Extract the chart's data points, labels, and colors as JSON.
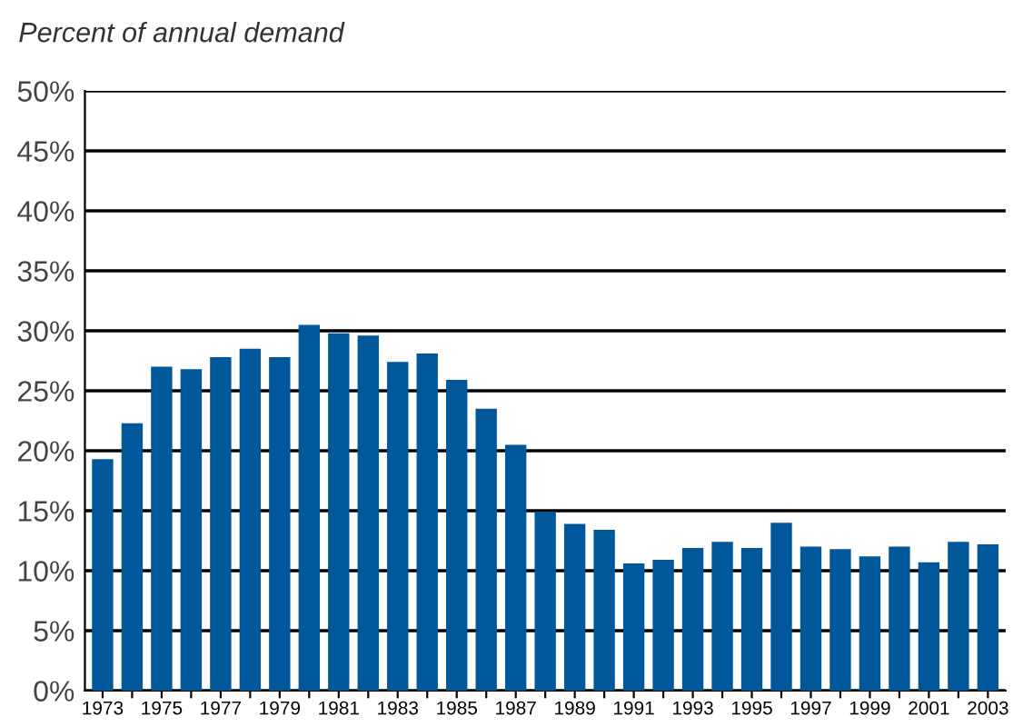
{
  "chart_data": {
    "type": "bar",
    "ylabel": "Percent of annual demand",
    "categories": [
      "1973",
      null,
      "1975",
      null,
      "1977",
      null,
      "1979",
      null,
      "1981",
      null,
      "1983",
      null,
      "1985",
      null,
      "1987",
      null,
      "1989",
      null,
      "1991",
      null,
      "1993",
      null,
      "1995",
      null,
      "1997",
      null,
      "1999",
      null,
      "2001",
      null,
      "2003"
    ],
    "values": [
      19.3,
      22.3,
      27.0,
      26.8,
      27.8,
      28.5,
      27.8,
      30.5,
      29.8,
      29.6,
      27.4,
      28.1,
      25.9,
      23.5,
      20.5,
      14.9,
      13.9,
      13.4,
      10.6,
      10.9,
      11.9,
      12.4,
      11.9,
      14.0,
      12.0,
      11.8,
      11.2,
      12.0,
      10.7,
      12.4,
      12.2
    ],
    "color": "#00579a",
    "ylim": [
      0,
      50
    ],
    "yticks": [
      {
        "value": 0,
        "label": "0%"
      },
      {
        "value": 5,
        "label": "5%"
      },
      {
        "value": 10,
        "label": "10%"
      },
      {
        "value": 15,
        "label": "15%"
      },
      {
        "value": 20,
        "label": "20%"
      },
      {
        "value": 25,
        "label": "25%"
      },
      {
        "value": 30,
        "label": "30%"
      },
      {
        "value": 35,
        "label": "35%"
      },
      {
        "value": 40,
        "label": "40%"
      },
      {
        "value": 45,
        "label": "45%"
      },
      {
        "value": 50,
        "label": "50%"
      }
    ],
    "grid": "y",
    "legend": false
  }
}
